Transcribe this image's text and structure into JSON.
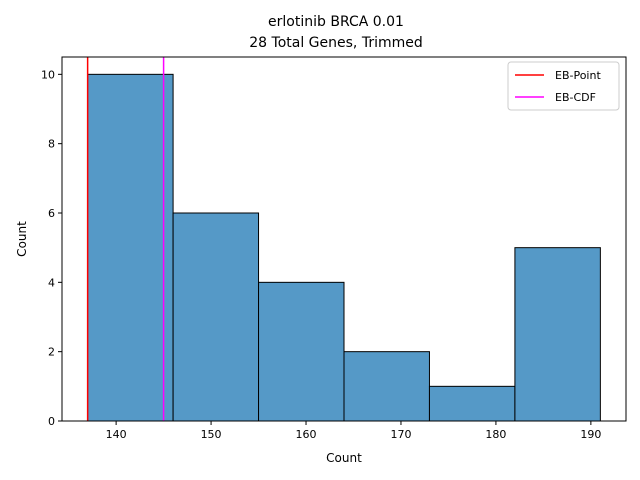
{
  "chart_data": {
    "type": "histogram",
    "title_line1": "erlotinib BRCA 0.01",
    "title_line2": "28 Total Genes, Trimmed",
    "xlabel": "Count",
    "ylabel": "Count",
    "xlim": [
      134.3,
      193.7
    ],
    "ylim": [
      0,
      10.5
    ],
    "x_ticks": [
      140,
      150,
      160,
      170,
      180,
      190
    ],
    "y_ticks": [
      0,
      2,
      4,
      6,
      8,
      10
    ],
    "bins": [
      {
        "x0": 137,
        "x1": 146,
        "count": 10
      },
      {
        "x0": 146,
        "x1": 155,
        "count": 6
      },
      {
        "x0": 155,
        "x1": 164,
        "count": 4
      },
      {
        "x0": 164,
        "x1": 173,
        "count": 2
      },
      {
        "x0": 173,
        "x1": 182,
        "count": 1
      },
      {
        "x0": 182,
        "x1": 191,
        "count": 5
      }
    ],
    "bar_color": "#5599c7",
    "vlines": [
      {
        "name": "EB-Point",
        "x": 137,
        "color": "#ff0000"
      },
      {
        "name": "EB-CDF",
        "x": 145,
        "color": "#ff00ff"
      }
    ],
    "legend_position": "top-right",
    "grid": false
  }
}
